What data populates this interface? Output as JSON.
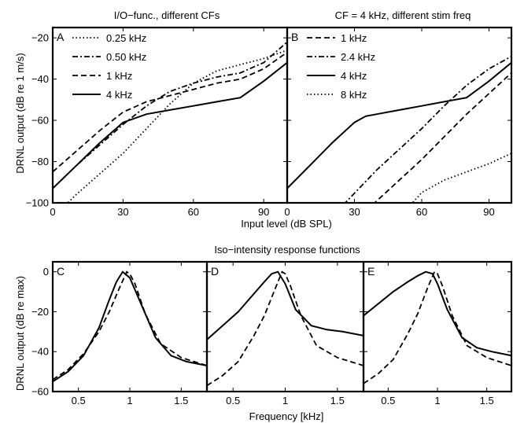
{
  "figure": {
    "title_top_left": "I/O−func., different CFs",
    "title_top_right": "CF = 4 kHz, different stim freq",
    "title_bottom": "Iso−intensity response functions",
    "xlabel_top": "Input level (dB SPL)",
    "ylabel_top": "DRNL output (dB re 1 m/s)",
    "xlabel_bottom": "Frequency [kHz]",
    "ylabel_bottom": "DRNL output (dB re max)"
  },
  "chart_data": [
    {
      "type": "line",
      "panel": "A",
      "title": "I/O−func., different CFs",
      "xlim": [
        0,
        100
      ],
      "ylim": [
        -100,
        -15
      ],
      "xticks": [
        0,
        30,
        60,
        90
      ],
      "yticks": [
        -100,
        -80,
        -60,
        -40,
        -20
      ],
      "legend": "top-left",
      "series": [
        {
          "name": "0.25 kHz",
          "style": "dotted",
          "x": [
            0,
            10,
            20,
            30,
            40,
            50,
            60,
            70,
            80,
            90,
            100
          ],
          "y": [
            -107,
            -96,
            -86,
            -76,
            -64,
            -52,
            -42,
            -36,
            -33,
            -30,
            -26
          ]
        },
        {
          "name": "0.50 kHz",
          "style": "dashdot",
          "x": [
            0,
            10,
            20,
            30,
            40,
            50,
            60,
            70,
            80,
            90,
            100
          ],
          "y": [
            -93,
            -82,
            -72,
            -62,
            -53,
            -46,
            -42,
            -39,
            -37,
            -32,
            -22
          ]
        },
        {
          "name": "1 kHz",
          "style": "dashed",
          "x": [
            0,
            10,
            20,
            30,
            40,
            50,
            60,
            70,
            80,
            90,
            100
          ],
          "y": [
            -85,
            -75,
            -65,
            -56,
            -51,
            -48,
            -45,
            -42,
            -40,
            -35,
            -27
          ]
        },
        {
          "name": "4 kHz",
          "style": "solid",
          "x": [
            0,
            10,
            20,
            30,
            40,
            50,
            60,
            70,
            80,
            90,
            100
          ],
          "y": [
            -93,
            -82,
            -71,
            -61,
            -57,
            -55,
            -53,
            -51,
            -49,
            -41,
            -32
          ]
        }
      ]
    },
    {
      "type": "line",
      "panel": "B",
      "title": "CF = 4 kHz, different stim freq",
      "xlim": [
        0,
        100
      ],
      "ylim": [
        -100,
        -15
      ],
      "xticks": [
        0,
        30,
        60,
        90
      ],
      "yticks": [
        -100,
        -80,
        -60,
        -40,
        -20
      ],
      "legend": "top-left",
      "series": [
        {
          "name": "1 kHz",
          "style": "dashed",
          "x": [
            38,
            50,
            60,
            70,
            80,
            90,
            100
          ],
          "y": [
            -101,
            -89,
            -79,
            -68,
            -57,
            -47,
            -37
          ]
        },
        {
          "name": "2.4 kHz",
          "style": "dashdot",
          "x": [
            25,
            40,
            50,
            60,
            70,
            80,
            90,
            100
          ],
          "y": [
            -101,
            -84,
            -74,
            -64,
            -53,
            -43,
            -35,
            -29
          ]
        },
        {
          "name": "4 kHz",
          "style": "solid",
          "x": [
            0,
            10,
            20,
            30,
            35,
            40,
            50,
            60,
            70,
            80,
            90,
            100
          ],
          "y": [
            -93,
            -82,
            -71,
            -61,
            -58,
            -57,
            -55,
            -53,
            -51,
            -49,
            -41,
            -32
          ]
        },
        {
          "name": "8 kHz",
          "style": "dotted",
          "x": [
            55,
            60,
            70,
            80,
            90,
            100
          ],
          "y": [
            -101,
            -95,
            -89,
            -85,
            -81,
            -76
          ]
        }
      ]
    },
    {
      "type": "line",
      "panel": "C",
      "xlim": [
        0.25,
        1.75
      ],
      "ylim": [
        -60,
        5
      ],
      "xticks": [
        0.5,
        1,
        1.5
      ],
      "yticks": [
        -60,
        -40,
        -20,
        0
      ],
      "series": [
        {
          "style": "solid",
          "x": [
            0.25,
            0.4,
            0.55,
            0.7,
            0.8,
            0.87,
            0.93,
            1.0,
            1.1,
            1.25,
            1.4,
            1.55,
            1.75
          ],
          "y": [
            -55,
            -50,
            -42,
            -28,
            -14,
            -5,
            0,
            -3,
            -15,
            -33,
            -42,
            -45,
            -47
          ]
        },
        {
          "style": "dashed",
          "x": [
            0.25,
            0.4,
            0.55,
            0.7,
            0.8,
            0.9,
            0.97,
            1.0,
            1.05,
            1.15,
            1.3,
            1.5,
            1.75
          ],
          "y": [
            -54,
            -49,
            -41,
            -30,
            -20,
            -8,
            0,
            -1,
            -6,
            -21,
            -36,
            -43,
            -47
          ]
        }
      ]
    },
    {
      "type": "line",
      "panel": "D",
      "xlim": [
        0.25,
        1.75
      ],
      "ylim": [
        -60,
        5
      ],
      "xticks": [
        0.5,
        1,
        1.5
      ],
      "yticks": [
        -60,
        -40,
        -20,
        0
      ],
      "series": [
        {
          "style": "solid",
          "x": [
            0.25,
            0.4,
            0.55,
            0.7,
            0.8,
            0.87,
            0.93,
            1.0,
            1.1,
            1.25,
            1.4,
            1.55,
            1.75
          ],
          "y": [
            -34,
            -27,
            -20,
            -11,
            -5,
            -1,
            0,
            -6,
            -19,
            -27,
            -29,
            -30,
            -32
          ]
        },
        {
          "style": "dashed",
          "x": [
            0.25,
            0.4,
            0.55,
            0.7,
            0.8,
            0.9,
            0.97,
            1.0,
            1.05,
            1.15,
            1.3,
            1.5,
            1.75
          ],
          "y": [
            -57,
            -52,
            -45,
            -32,
            -22,
            -9,
            0,
            -1,
            -7,
            -22,
            -37,
            -43,
            -47
          ]
        }
      ]
    },
    {
      "type": "line",
      "panel": "E",
      "xlim": [
        0.25,
        1.75
      ],
      "ylim": [
        -60,
        5
      ],
      "xticks": [
        0.5,
        1,
        1.5
      ],
      "yticks": [
        -60,
        -40,
        -20,
        0
      ],
      "series": [
        {
          "style": "solid",
          "x": [
            0.25,
            0.4,
            0.55,
            0.7,
            0.8,
            0.88,
            0.95,
            1.0,
            1.1,
            1.25,
            1.4,
            1.55,
            1.75
          ],
          "y": [
            -22,
            -16,
            -10,
            -5,
            -2,
            0,
            -1,
            -6,
            -19,
            -33,
            -38,
            -40,
            -42
          ]
        },
        {
          "style": "dashed",
          "x": [
            0.25,
            0.4,
            0.55,
            0.7,
            0.8,
            0.9,
            0.97,
            1.0,
            1.05,
            1.15,
            1.3,
            1.5,
            1.75
          ],
          "y": [
            -56,
            -51,
            -44,
            -31,
            -21,
            -8,
            0,
            -1,
            -7,
            -22,
            -37,
            -43,
            -47
          ]
        }
      ]
    }
  ]
}
